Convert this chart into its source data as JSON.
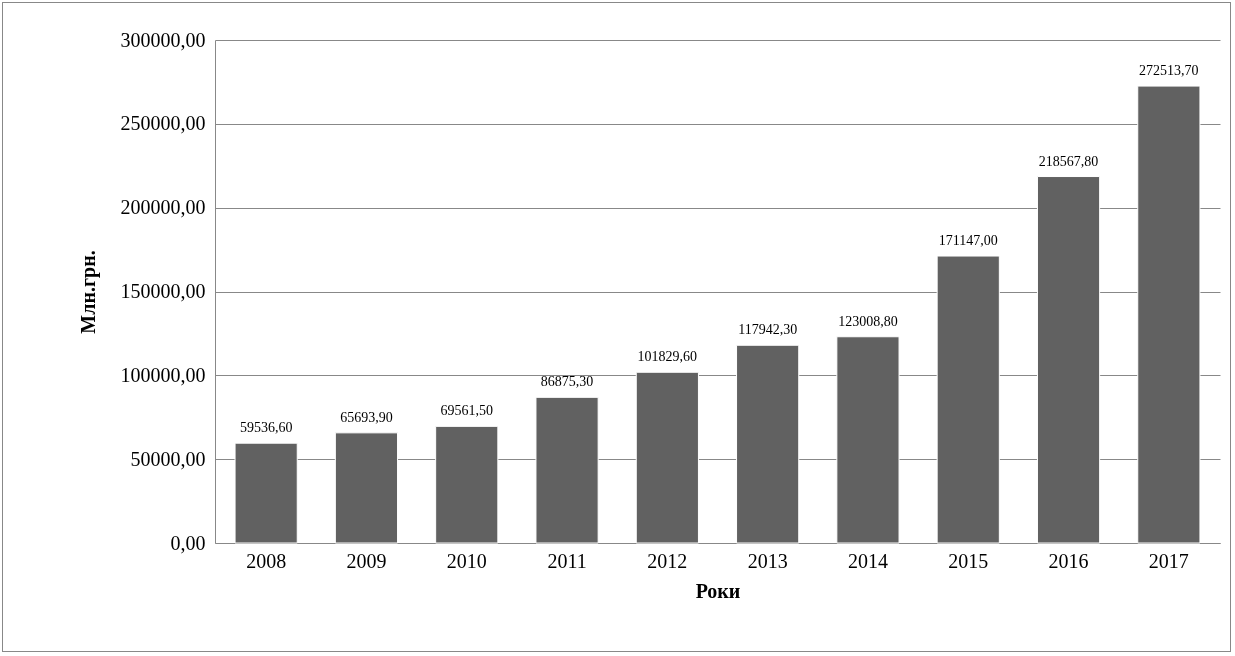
{
  "chart_data": {
    "type": "bar",
    "xlabel": "Роки",
    "ylabel": "Млн.грн.",
    "categories": [
      "2008",
      "2009",
      "2010",
      "2011",
      "2012",
      "2013",
      "2014",
      "2015",
      "2016",
      "2017"
    ],
    "values": [
      59536.6,
      65693.9,
      69561.5,
      86875.3,
      101829.6,
      117942.3,
      123008.8,
      171147.0,
      218567.8,
      272513.7
    ],
    "value_labels": [
      "59536,60",
      "65693,90",
      "69561,50",
      "86875,30",
      "101829,60",
      "117942,30",
      "123008,80",
      "171147,00",
      "218567,80",
      "272513,70"
    ],
    "color": "#616161",
    "ylim": [
      0,
      300000
    ],
    "yticks": [
      {
        "value": 0,
        "label": "0,00"
      },
      {
        "value": 50000,
        "label": "50000,00"
      },
      {
        "value": 100000,
        "label": "100000,00"
      },
      {
        "value": 150000,
        "label": "150000,00"
      },
      {
        "value": 200000,
        "label": "200000,00"
      },
      {
        "value": 250000,
        "label": "250000,00"
      },
      {
        "value": 300000,
        "label": "300000,00"
      }
    ],
    "grid": "y"
  }
}
